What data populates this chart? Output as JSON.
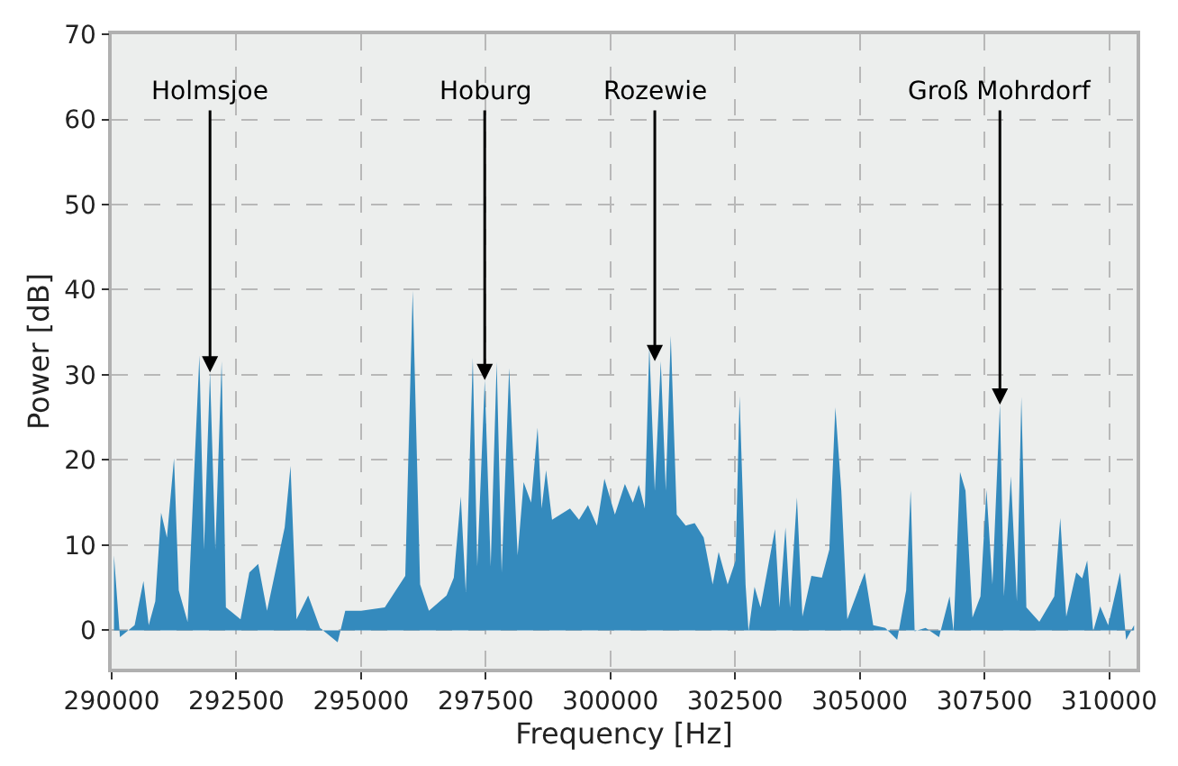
{
  "chart_data": {
    "type": "area",
    "xlabel": "Frequency [Hz]",
    "ylabel": "Power [dB]",
    "xlim": [
      290000,
      310550
    ],
    "ylim": [
      -4.5,
      70
    ],
    "xticks": [
      290000,
      292500,
      295000,
      297500,
      300000,
      302500,
      305000,
      307500,
      310000
    ],
    "yticks": [
      0,
      10,
      20,
      30,
      40,
      50,
      60,
      70
    ],
    "grid": true,
    "annotations": [
      {
        "text": "Holmsjoe",
        "x": 291972,
        "y": 30.3
      },
      {
        "text": "Hoburg",
        "x": 297480,
        "y": 29.4
      },
      {
        "text": "Rozewie",
        "x": 300890,
        "y": 31.6
      },
      {
        "text": "Groß Mohrdorf",
        "x": 307810,
        "y": 26.5
      }
    ],
    "series": [
      {
        "color": "#348abd",
        "x": [
          290046,
          290166,
          290460,
          290637,
          290743,
          290874,
          290991,
          291108,
          291250,
          291345,
          291522,
          291759,
          291851,
          291972,
          292078,
          292205,
          292290,
          292584,
          292761,
          292938,
          293115,
          293469,
          293586,
          293706,
          293940,
          294177,
          294531,
          294683,
          295002,
          295476,
          295887,
          296036,
          296184,
          296361,
          296715,
          296860,
          297000,
          297100,
          297240,
          297330,
          297480,
          297600,
          297720,
          297820,
          297970,
          298140,
          298260,
          298410,
          298540,
          298620,
          298710,
          298830,
          299190,
          299370,
          299550,
          299730,
          299880,
          300090,
          300290,
          300450,
          300570,
          300690,
          300780,
          300890,
          301010,
          301110,
          301210,
          301330,
          301510,
          301690,
          301870,
          302050,
          302170,
          302350,
          302510,
          302590,
          302710,
          302770,
          302890,
          303010,
          303300,
          303390,
          303510,
          303600,
          303740,
          303850,
          304030,
          304240,
          304390,
          304510,
          304630,
          304750,
          305100,
          305270,
          305510,
          305750,
          305930,
          306020,
          306100,
          306320,
          306590,
          306800,
          306880,
          307010,
          307120,
          307260,
          307420,
          307540,
          307660,
          307810,
          307890,
          308030,
          308150,
          308240,
          308340,
          308600,
          308900,
          309020,
          309140,
          309340,
          309460,
          309560,
          309680,
          309820,
          309980,
          310220,
          310340,
          310500
        ],
        "values": [
          8.8,
          -0.8,
          0.6,
          5.8,
          0.6,
          3.4,
          13.8,
          10.9,
          20.2,
          4.7,
          1,
          32.3,
          9.5,
          30.3,
          9.5,
          31.6,
          2.7,
          1.3,
          6.8,
          7.8,
          2.3,
          12.1,
          19.3,
          1.3,
          4.1,
          0.3,
          -1.4,
          2.3,
          2.3,
          2.7,
          6.4,
          39.9,
          5.4,
          2.3,
          4.1,
          6.2,
          15.7,
          4.5,
          32,
          7.5,
          29.4,
          7.5,
          31.5,
          6.8,
          30.8,
          8.8,
          17.4,
          15,
          23.8,
          14.3,
          18.8,
          13,
          14.3,
          13,
          14.7,
          12.3,
          17.8,
          13.6,
          17.2,
          15,
          17.1,
          14.3,
          33.4,
          16.4,
          31.6,
          16.4,
          34.6,
          13.6,
          12.3,
          12.6,
          10.9,
          5.4,
          9.2,
          5.4,
          8.2,
          27.5,
          5.4,
          -0.1,
          5.1,
          2.7,
          11.9,
          2.7,
          12.1,
          2.7,
          15.6,
          1.6,
          6.4,
          6.2,
          9.5,
          26.2,
          16.4,
          1.3,
          6.8,
          0.6,
          0.3,
          -1.1,
          4.7,
          16.4,
          -0.1,
          0.3,
          -0.8,
          4,
          -0.1,
          18.6,
          16.4,
          1.5,
          4,
          16.5,
          5.4,
          26.5,
          4,
          18.1,
          3.4,
          27.4,
          2.7,
          1,
          4,
          13.2,
          1.6,
          6.8,
          6.1,
          8.2,
          -0.1,
          2.8,
          0.6,
          6.8,
          -1.1,
          0.6
        ]
      }
    ]
  }
}
